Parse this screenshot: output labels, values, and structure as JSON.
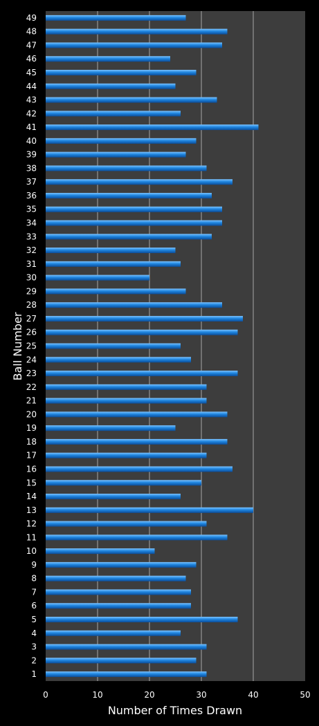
{
  "chart_data": {
    "type": "bar",
    "orientation": "horizontal",
    "title": "",
    "xlabel": "Number of Times Drawn",
    "ylabel": "Ball Number",
    "xlim": [
      0,
      50
    ],
    "x_ticks": [
      0,
      10,
      20,
      30,
      40,
      50
    ],
    "grid": true,
    "categories": [
      "1",
      "2",
      "3",
      "4",
      "5",
      "6",
      "7",
      "8",
      "9",
      "10",
      "11",
      "12",
      "13",
      "14",
      "15",
      "16",
      "17",
      "18",
      "19",
      "20",
      "21",
      "22",
      "23",
      "24",
      "25",
      "26",
      "27",
      "28",
      "29",
      "30",
      "31",
      "32",
      "33",
      "34",
      "35",
      "36",
      "37",
      "38",
      "39",
      "40",
      "41",
      "42",
      "43",
      "44",
      "45",
      "46",
      "47",
      "48",
      "49"
    ],
    "values": [
      31,
      29,
      31,
      26,
      37,
      28,
      28,
      27,
      29,
      21,
      35,
      31,
      40,
      26,
      30,
      36,
      31,
      35,
      25,
      35,
      31,
      31,
      37,
      28,
      26,
      37,
      38,
      34,
      27,
      20,
      26,
      25,
      32,
      34,
      34,
      32,
      36,
      31,
      27,
      29,
      41,
      26,
      33,
      25,
      29,
      24,
      34,
      35,
      27
    ],
    "colors": {
      "background": "#000000",
      "plot_area": "#3d3d3d",
      "gridline": "#a8a8a8",
      "bar": "#1f86e0",
      "bar_highlight": "#7cc3ff",
      "bar_shadow": "#0b4d9a",
      "text": "#ffffff"
    }
  }
}
